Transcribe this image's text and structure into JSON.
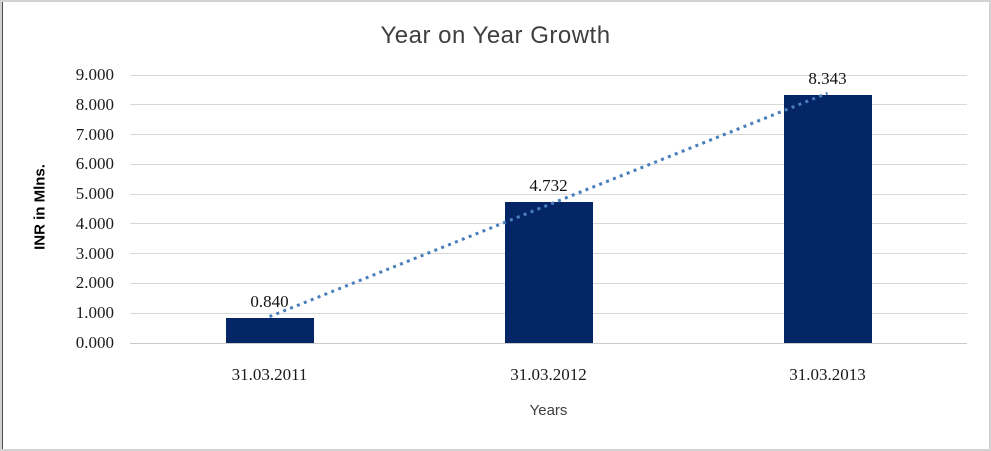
{
  "chart_data": {
    "type": "bar",
    "title": "Year on Year Growth",
    "xlabel": "Years",
    "ylabel": "INR in Mlns.",
    "categories": [
      "31.03.2011",
      "31.03.2012",
      "31.03.2013"
    ],
    "values": [
      0.84,
      4.732,
      8.343
    ],
    "data_labels": [
      "0.840",
      "4.732",
      "8.343"
    ],
    "ytick_labels": [
      "0.000",
      "1.000",
      "2.000",
      "3.000",
      "4.000",
      "5.000",
      "6.000",
      "7.000",
      "8.000",
      "9.000"
    ],
    "ylim": [
      0,
      9
    ],
    "ytick_step": 1,
    "grid": "horizontal",
    "legend": "none",
    "trendline": {
      "type": "linear",
      "style": "dotted"
    },
    "colors": {
      "bar": "#042566",
      "trendline": "#4A7EBB",
      "gridline": "#D8D8D8",
      "axis_line": "#C9C9C9",
      "title_text": "#3F3F3F",
      "tick_text": "#1A1A1A"
    }
  }
}
